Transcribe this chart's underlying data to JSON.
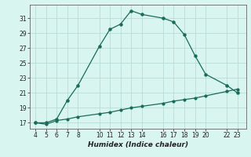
{
  "xlabel": "Humidex (Indice chaleur)",
  "line_color": "#1a6b5a",
  "bg_color": "#d8f5f0",
  "grid_color": "#b8ddd8",
  "x_data": [
    4,
    5,
    6,
    7,
    8,
    10,
    11,
    12,
    13,
    14,
    16,
    17,
    18,
    19,
    20,
    22,
    23
  ],
  "y_top": [
    17.0,
    17.0,
    17.5,
    20.0,
    22.0,
    27.2,
    29.5,
    30.2,
    32.0,
    31.5,
    31.0,
    30.5,
    28.8,
    26.0,
    23.5,
    22.0,
    21.0
  ],
  "y_bot": [
    17.0,
    16.8,
    17.3,
    17.5,
    17.8,
    18.2,
    18.4,
    18.7,
    19.0,
    19.2,
    19.6,
    19.9,
    20.1,
    20.3,
    20.6,
    21.2,
    21.5
  ],
  "xlim": [
    3.5,
    23.8
  ],
  "ylim": [
    16.2,
    32.8
  ],
  "yticks": [
    17,
    19,
    21,
    23,
    25,
    27,
    29,
    31
  ],
  "xticks": [
    4,
    5,
    6,
    7,
    8,
    10,
    11,
    12,
    13,
    14,
    16,
    17,
    18,
    19,
    20,
    22,
    23
  ],
  "tick_fontsize": 5.5,
  "xlabel_fontsize": 6.5
}
